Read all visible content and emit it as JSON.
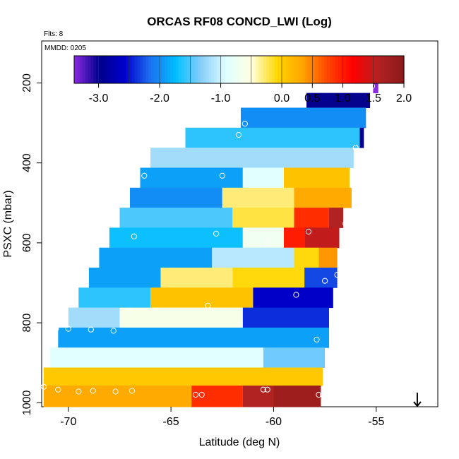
{
  "chart_data": {
    "type": "heatmap",
    "title": "ORCAS RF08 CONCD_LWI (Log)",
    "annotations": [
      "Flts: 8",
      "MMDD: 0205"
    ],
    "xlabel": "Latitude (deg N)",
    "ylabel": "PSXC (mbar)",
    "xlim": [
      -71.3,
      -52.0
    ],
    "ylim": [
      1010,
      95
    ],
    "y_reversed": true,
    "x_ticks": [
      -70,
      -65,
      -60,
      -55
    ],
    "y_ticks": [
      200,
      400,
      600,
      800,
      1000
    ],
    "grid": false,
    "colorbar": {
      "placement": "top",
      "range": [
        -3.4,
        2.0
      ],
      "ticks": [
        -3.0,
        -2.0,
        -1.0,
        0.0,
        0.5,
        1.0,
        1.5,
        2.0
      ],
      "tick_labels": [
        "-3.0",
        "-2.0",
        "-1.0",
        "0.0",
        "0.5",
        "1.0",
        "1.5",
        "2.0"
      ],
      "colors": [
        "#8a2be2",
        "#00008b",
        "#0000cd",
        "#1e6ff0",
        "#00bfff",
        "#87cefa",
        "#e0ffff",
        "#ffffe0",
        "#ffd700",
        "#ffa500",
        "#ff4500",
        "#ff0000",
        "#b22222",
        "#8b1a1a"
      ]
    },
    "rows": [
      {
        "p_top": 195,
        "p_bot": 225,
        "segments": [
          {
            "x0": -55.15,
            "x1": -54.9,
            "v": -3.4
          }
        ]
      },
      {
        "p_top": 225,
        "p_bot": 262,
        "segments": [
          {
            "x0": -58.4,
            "x1": -55.3,
            "v": -3.0
          }
        ]
      },
      {
        "p_top": 262,
        "p_bot": 312,
        "segments": [
          {
            "x0": -61.6,
            "x1": -55.5,
            "v": -2.0
          }
        ]
      },
      {
        "p_top": 312,
        "p_bot": 362,
        "segments": [
          {
            "x0": -64.3,
            "x1": -55.8,
            "v": -1.6
          },
          {
            "x0": -55.8,
            "x1": -55.6,
            "v": -3.0
          }
        ]
      },
      {
        "p_top": 362,
        "p_bot": 412,
        "segments": [
          {
            "x0": -66.0,
            "x1": -56.1,
            "v": -1.2
          }
        ]
      },
      {
        "p_top": 412,
        "p_bot": 462,
        "segments": [
          {
            "x0": -66.5,
            "x1": -61.5,
            "v": -1.9
          },
          {
            "x0": -61.5,
            "x1": -59.5,
            "v": -0.9
          },
          {
            "x0": -59.5,
            "x1": -56.3,
            "v": 0.1
          }
        ]
      },
      {
        "p_top": 462,
        "p_bot": 512,
        "segments": [
          {
            "x0": -67.0,
            "x1": -62.5,
            "v": -2.0
          },
          {
            "x0": -62.5,
            "x1": -59.0,
            "v": -0.3
          },
          {
            "x0": -59.0,
            "x1": -56.2,
            "v": 0.3
          }
        ]
      },
      {
        "p_top": 512,
        "p_bot": 562,
        "segments": [
          {
            "x0": -67.5,
            "x1": -62.0,
            "v": -1.5
          },
          {
            "x0": -62.0,
            "x1": -59.0,
            "v": -0.2
          },
          {
            "x0": -59.0,
            "x1": -57.3,
            "v": 0.9
          },
          {
            "x0": -57.3,
            "x1": -56.6,
            "v": 1.6
          }
        ]
      },
      {
        "p_top": 562,
        "p_bot": 612,
        "segments": [
          {
            "x0": -68.0,
            "x1": -61.5,
            "v": -1.7
          },
          {
            "x0": -61.5,
            "x1": -59.5,
            "v": -0.7
          },
          {
            "x0": -59.5,
            "x1": -58.5,
            "v": 1.0
          },
          {
            "x0": -58.5,
            "x1": -56.8,
            "v": 1.5
          }
        ]
      },
      {
        "p_top": 612,
        "p_bot": 662,
        "segments": [
          {
            "x0": -68.5,
            "x1": -63.0,
            "v": -1.9
          },
          {
            "x0": -63.0,
            "x1": -59.0,
            "v": -1.1
          },
          {
            "x0": -59.0,
            "x1": -57.8,
            "v": -0.1
          },
          {
            "x0": -57.8,
            "x1": -56.9,
            "v": 0.4
          }
        ]
      },
      {
        "p_top": 662,
        "p_bot": 712,
        "segments": [
          {
            "x0": -69.0,
            "x1": -65.5,
            "v": -1.9
          },
          {
            "x0": -65.5,
            "x1": -62.0,
            "v": -0.3
          },
          {
            "x0": -62.0,
            "x1": -58.5,
            "v": -0.1
          },
          {
            "x0": -58.5,
            "x1": -56.9,
            "v": -2.3
          }
        ]
      },
      {
        "p_top": 712,
        "p_bot": 762,
        "segments": [
          {
            "x0": -69.5,
            "x1": -66.0,
            "v": -1.6
          },
          {
            "x0": -66.0,
            "x1": -61.0,
            "v": 0.1
          },
          {
            "x0": -61.0,
            "x1": -57.1,
            "v": -2.6
          }
        ]
      },
      {
        "p_top": 762,
        "p_bot": 812,
        "segments": [
          {
            "x0": -70.0,
            "x1": -67.5,
            "v": -1.2
          },
          {
            "x0": -67.5,
            "x1": -61.5,
            "v": -0.6
          },
          {
            "x0": -61.5,
            "x1": -57.3,
            "v": -2.4
          }
        ]
      },
      {
        "p_top": 812,
        "p_bot": 862,
        "segments": [
          {
            "x0": -70.5,
            "x1": -57.3,
            "v": -1.9
          }
        ]
      },
      {
        "p_top": 862,
        "p_bot": 912,
        "segments": [
          {
            "x0": -70.9,
            "x1": -60.5,
            "v": -0.9
          },
          {
            "x0": -60.5,
            "x1": -57.5,
            "v": -1.4
          }
        ]
      },
      {
        "p_top": 912,
        "p_bot": 957,
        "segments": [
          {
            "x0": -71.2,
            "x1": -57.6,
            "v": 0.05
          }
        ]
      },
      {
        "p_top": 957,
        "p_bot": 1010,
        "segments": [
          {
            "x0": -71.2,
            "x1": -64.0,
            "v": 0.3
          },
          {
            "x0": -64.0,
            "x1": -61.5,
            "v": 0.9
          },
          {
            "x0": -61.5,
            "x1": -60.0,
            "v": 1.6
          },
          {
            "x0": -60.0,
            "x1": -57.7,
            "v": 1.8
          }
        ]
      }
    ],
    "markers": [
      {
        "lat": -55.2,
        "p": 208
      },
      {
        "lat": -61.4,
        "p": 302
      },
      {
        "lat": -61.7,
        "p": 330
      },
      {
        "lat": -56.0,
        "p": 362
      },
      {
        "lat": -66.3,
        "p": 432
      },
      {
        "lat": -62.5,
        "p": 432
      },
      {
        "lat": -56.5,
        "p": 552
      },
      {
        "lat": -58.3,
        "p": 572
      },
      {
        "lat": -66.8,
        "p": 584
      },
      {
        "lat": -62.8,
        "p": 577
      },
      {
        "lat": -60.3,
        "p": 600
      },
      {
        "lat": -57.5,
        "p": 695
      },
      {
        "lat": -56.9,
        "p": 680
      },
      {
        "lat": -58.9,
        "p": 730
      },
      {
        "lat": -63.2,
        "p": 757
      },
      {
        "lat": -67.0,
        "p": 770
      },
      {
        "lat": -70.6,
        "p": 815
      },
      {
        "lat": -70.0,
        "p": 815
      },
      {
        "lat": -68.9,
        "p": 817
      },
      {
        "lat": -67.8,
        "p": 820
      },
      {
        "lat": -57.9,
        "p": 842
      },
      {
        "lat": -71.2,
        "p": 960
      },
      {
        "lat": -70.5,
        "p": 967
      },
      {
        "lat": -69.5,
        "p": 972
      },
      {
        "lat": -68.8,
        "p": 970
      },
      {
        "lat": -67.7,
        "p": 972
      },
      {
        "lat": -66.9,
        "p": 970
      },
      {
        "lat": -60.5,
        "p": 967
      },
      {
        "lat": -60.3,
        "p": 967
      },
      {
        "lat": -63.8,
        "p": 980
      },
      {
        "lat": -63.5,
        "p": 980
      },
      {
        "lat": -57.8,
        "p": 980
      },
      {
        "lat": -57.6,
        "p": 980
      }
    ],
    "arrow": {
      "lat": -53.0,
      "p": 1010,
      "direction": "down"
    }
  }
}
